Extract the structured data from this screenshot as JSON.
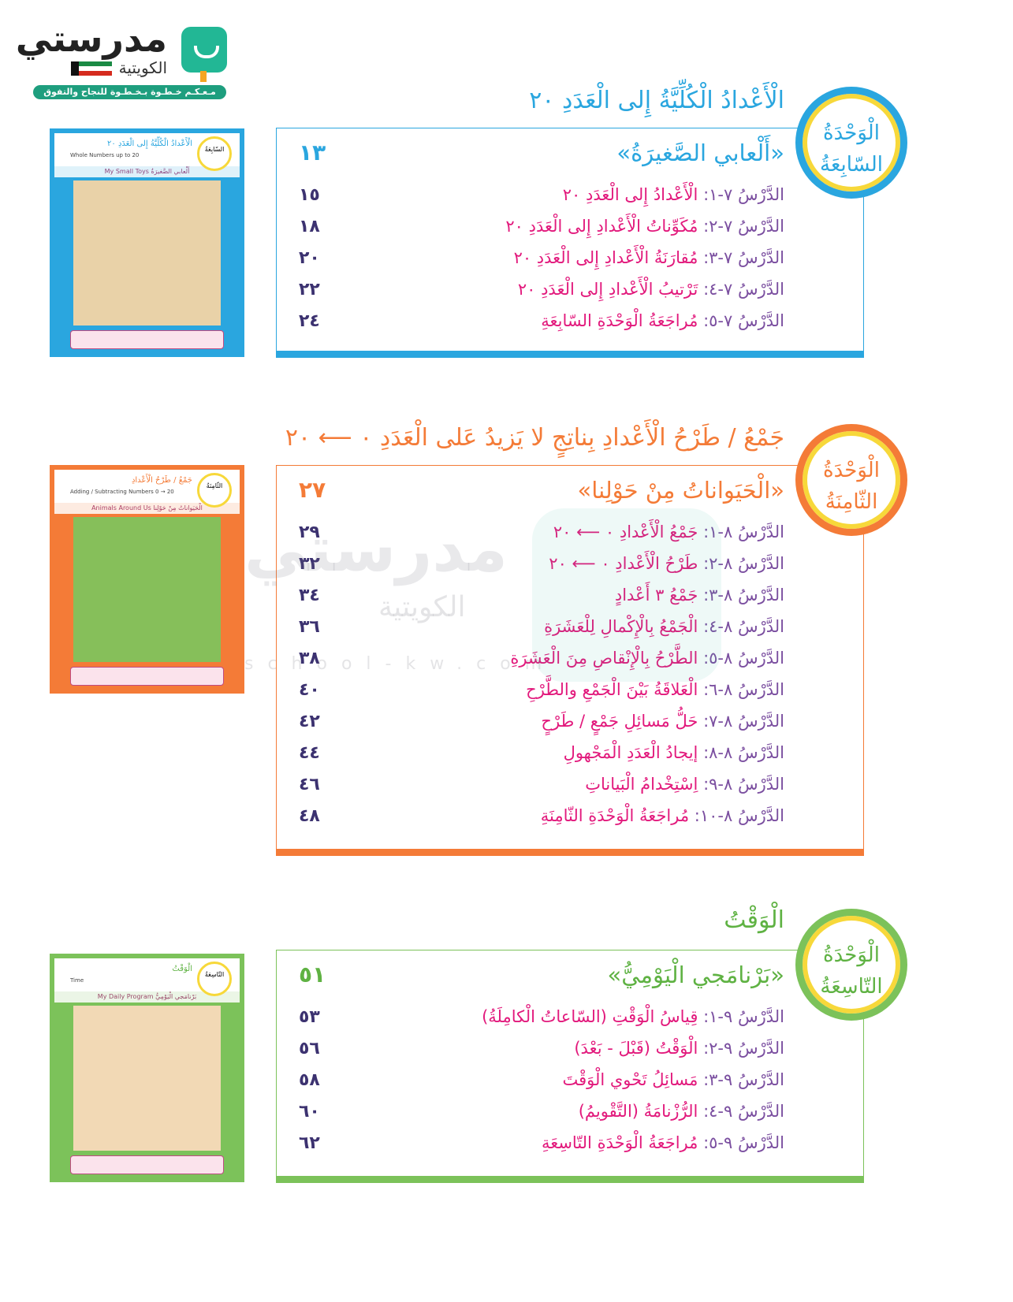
{
  "logo": {
    "word": "مدرستي",
    "sub": "الكويتية",
    "slogan": "مـعـكـم خـطـوة بـخـطـوة للنجاح والتفوق"
  },
  "watermark": {
    "word": "مدرستي",
    "sub": "الكويتية",
    "site": "school-kw.com"
  },
  "colors": {
    "unit7": "#2aa6df",
    "unit8": "#f47b37",
    "unit9": "#7cc25a",
    "lesson_label": "#7b4fa0",
    "lesson_title": "#e2197c",
    "page_number": "#3c3270"
  },
  "units": [
    {
      "badge": [
        "الْوَحْدَةُ",
        "السّابِعَةُ"
      ],
      "title": "الْأَعْدادُ الْكُلِّيَّةُ إِلى الْعَدَدِ ٢٠",
      "story": "«أَلْعابي الصَّغيرَةُ»",
      "story_page": "١٣",
      "thumb": {
        "title": "الْأَعْدادُ الْكُلِّيَّةُ إِلى الْعَدَدِ ٢٠",
        "en": "Whole Numbers up to 20",
        "bar": "My Small Toys  أَلْعابي الصَّغيرَةُ"
      },
      "lessons": [
        {
          "label": "الدَّرْسُ ٧-١:",
          "title": "الْأَعْدادُ إِلى الْعَدَدِ ٢٠",
          "page": "١٥"
        },
        {
          "label": "الدَّرْسُ ٧-٢:",
          "title": "مُكَوِّناتُ الْأَعْدادِ إِلى الْعَدَدِ ٢٠",
          "page": "١٨"
        },
        {
          "label": "الدَّرْسُ ٧-٣:",
          "title": "مُقارَنَةُ الْأَعْدادِ إِلى الْعَدَدِ ٢٠",
          "page": "٢٠"
        },
        {
          "label": "الدَّرْسُ ٧-٤:",
          "title": "تَرْتيبُ الْأَعْدادِ إِلى الْعَدَدِ ٢٠",
          "page": "٢٢"
        },
        {
          "label": "الدَّرْسُ ٧-٥:",
          "title": "مُراجَعَةُ الْوَحْدَةِ السّابِعَةِ",
          "page": "٢٤"
        }
      ]
    },
    {
      "badge": [
        "الْوَحْدَةُ",
        "الثّامِنَةُ"
      ],
      "title": "جَمْعُ / طَرْحُ الْأَعْدادِ بِناتِجٍ لا يَزيدُ عَلى الْعَدَدِ ٠ ⟵ ٢٠",
      "story": "«الْحَيَواناتُ مِنْ حَوْلِنا»",
      "story_page": "٢٧",
      "thumb": {
        "title": "جَمْعُ / طَرْحُ الْأَعْدادِ",
        "en": "Adding / Subtracting Numbers 0 → 20",
        "bar": "Animals Around Us  الْحَيَواناتُ مِنْ حَوْلِنا"
      },
      "lessons": [
        {
          "label": "الدَّرْسُ ٨-١:",
          "title": "جَمْعُ الْأَعْدادِ ٠ ⟵ ٢٠",
          "page": "٢٩"
        },
        {
          "label": "الدَّرْسُ ٨-٢:",
          "title": "طَرْحُ الْأَعْدادِ ٠ ⟵ ٢٠",
          "page": "٣٢"
        },
        {
          "label": "الدَّرْسُ ٨-٣:",
          "title": "جَمْعُ ٣ أَعْدادٍ",
          "page": "٣٤"
        },
        {
          "label": "الدَّرْسُ ٨-٤:",
          "title": "الْجَمْعُ بِالْإِكْمالِ لِلْعَشَرَةِ",
          "page": "٣٦"
        },
        {
          "label": "الدَّرْسُ ٨-٥:",
          "title": "الطَّرْحُ بِالْإِنْقاصِ مِنَ الْعَشَرَةِ",
          "page": "٣٨"
        },
        {
          "label": "الدَّرْسُ ٨-٦:",
          "title": "الْعَلاقَةُ بَيْنَ الْجَمْعِ والطَّرْحِ",
          "page": "٤٠"
        },
        {
          "label": "الدَّرْسُ ٨-٧:",
          "title": "حَلُّ مَسائِلِ جَمْعٍ / طَرْحٍ",
          "page": "٤٢"
        },
        {
          "label": "الدَّرْسُ ٨-٨:",
          "title": "إيجادُ الْعَدَدِ الْمَجْهولِ",
          "page": "٤٤"
        },
        {
          "label": "الدَّرْسُ ٨-٩:",
          "title": "اِسْتِخْدامُ الْبَياناتِ",
          "page": "٤٦"
        },
        {
          "label": "الدَّرْسُ ٨-١٠:",
          "title": "مُراجَعَةُ الْوَحْدَةِ الثّامِنَةِ",
          "page": "٤٨"
        }
      ]
    },
    {
      "badge": [
        "الْوَحْدَةُ",
        "التّاسِعَةُ"
      ],
      "title": "الْوَقْتُ",
      "story": "«بَرْنامَجي الْيَوْمِيُّ»",
      "story_page": "٥١",
      "thumb": {
        "title": "الْوَقْتُ",
        "en": "Time",
        "bar": "My Daily Program  بَرْنامَجي الْيَوْمِيُّ"
      },
      "lessons": [
        {
          "label": "الدَّرْسُ ٩-١:",
          "title": "قِياسُ الْوَقْتِ (السّاعاتُ الْكامِلَةُ)",
          "page": "٥٣"
        },
        {
          "label": "الدَّرْسُ ٩-٢:",
          "title": "الْوَقْتُ (قَبْلَ - بَعْدَ)",
          "page": "٥٦"
        },
        {
          "label": "الدَّرْسُ ٩-٣:",
          "title": "مَسائِلُ تَحْوي الْوَقْتَ",
          "page": "٥٨"
        },
        {
          "label": "الدَّرْسُ ٩-٤:",
          "title": "الرُّزْنامَةُ (التَّقْويمُ)",
          "page": "٦٠"
        },
        {
          "label": "الدَّرْسُ ٩-٥:",
          "title": "مُراجَعَةُ الْوَحْدَةِ التّاسِعَةِ",
          "page": "٦٢"
        }
      ]
    }
  ]
}
